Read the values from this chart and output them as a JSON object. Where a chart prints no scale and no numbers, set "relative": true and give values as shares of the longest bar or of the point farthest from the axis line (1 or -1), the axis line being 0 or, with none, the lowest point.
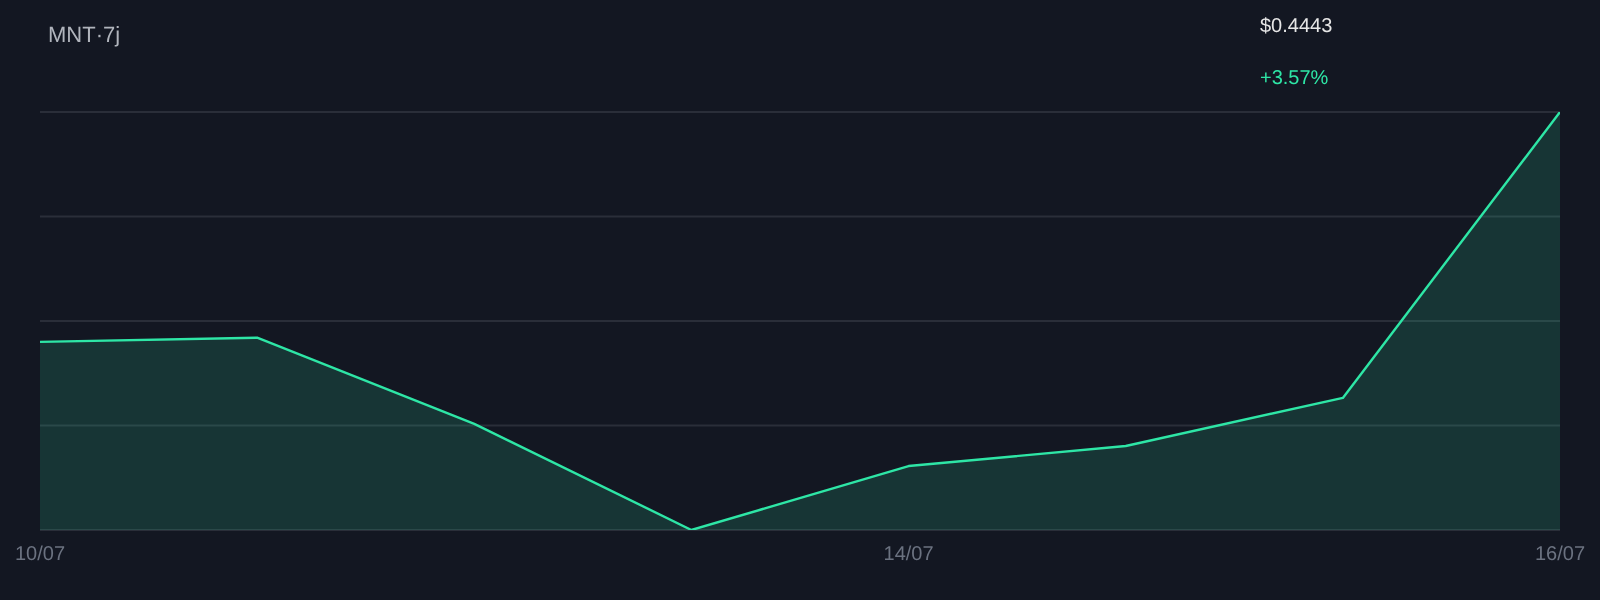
{
  "chart_data": {
    "type": "area",
    "title": "MNT·7j",
    "relative": true,
    "grid": "y",
    "categories": [
      "10/07",
      null,
      null,
      null,
      "14/07",
      null,
      null,
      "16/07"
    ],
    "series": [
      {
        "color": "#2ee6a6",
        "values": [
          0.45,
          0.46,
          0.254,
          0,
          0.153,
          0.201,
          0.316,
          1
        ]
      }
    ],
    "annotations": [
      "$0.4443",
      "+3.57%"
    ]
  }
}
